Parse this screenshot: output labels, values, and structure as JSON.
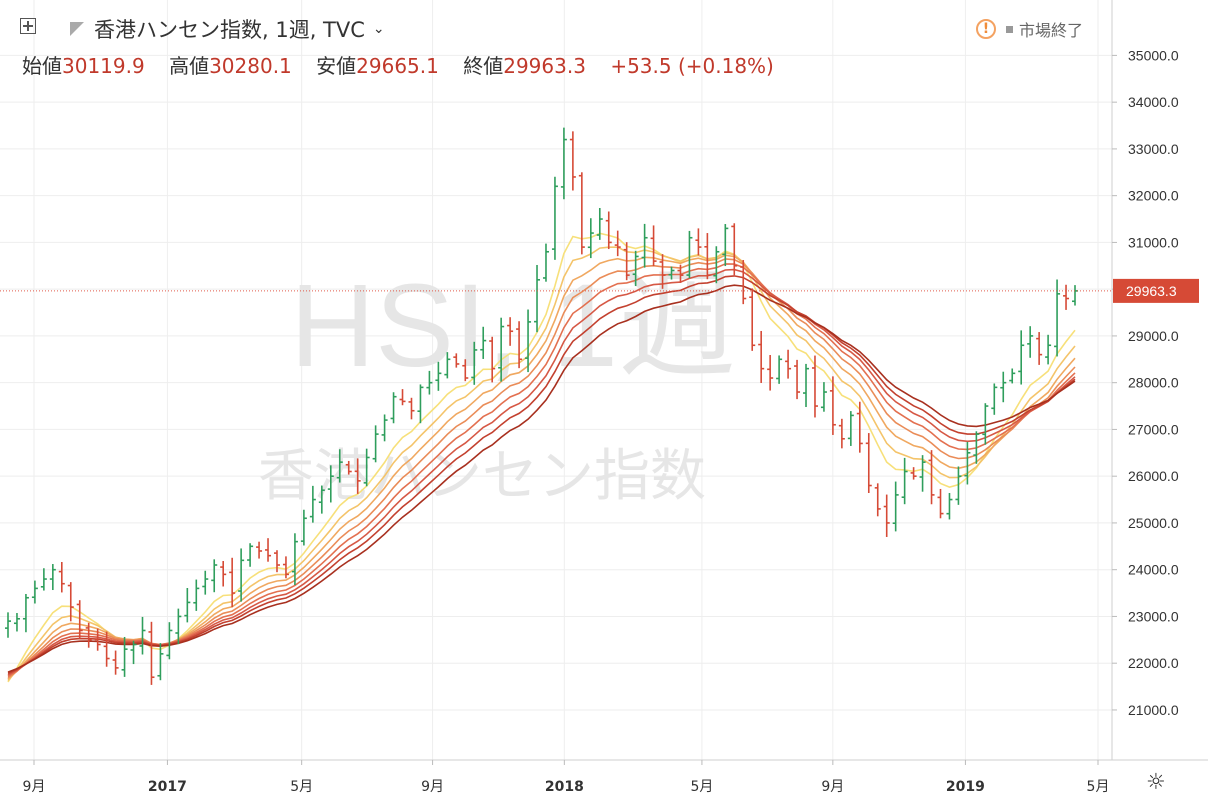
{
  "header": {
    "symbol_title": "香港ハンセン指数, 1週, TVC",
    "ohlc": [
      {
        "label": "始値",
        "value": "30119.9"
      },
      {
        "label": "高値",
        "value": "30280.1"
      },
      {
        "label": "安値",
        "value": "29665.1"
      },
      {
        "label": "終値",
        "value": "29963.3"
      },
      {
        "label": "",
        "value": "+53.5 (+0.18%)"
      }
    ],
    "market_status": "市場終了"
  },
  "watermark": {
    "line1": "HSI, 1週",
    "line2": "香港ハンセン指数"
  },
  "chart_data": {
    "type": "ohlc",
    "price_axis_ticks": [
      "35000.0",
      "34000.0",
      "33000.0",
      "32000.0",
      "31000.0",
      "30000.0",
      "29000.0",
      "28000.0",
      "27000.0",
      "26000.0",
      "25000.0",
      "24000.0",
      "23000.0",
      "22000.0",
      "21000.0"
    ],
    "ylim": [
      20400,
      35800
    ],
    "last_price_label": "29963.3",
    "last_price": 29963.3,
    "time_axis_labels": [
      "9月",
      "2017",
      "5月",
      "9月",
      "2018",
      "5月",
      "9月",
      "2019",
      "5月"
    ],
    "time_axis_fractions": [
      0.0,
      0.16,
      0.321,
      0.478,
      0.636,
      0.801,
      0.958,
      1.117,
      1.276
    ],
    "colors": {
      "up": "#2f9e5c",
      "down": "#d64a36",
      "last_line": "#e05a4a"
    },
    "closes": [
      22900,
      22950,
      23400,
      23600,
      23800,
      24000,
      23700,
      23200,
      22700,
      22500,
      22400,
      22100,
      21900,
      22300,
      22400,
      22700,
      21700,
      22200,
      22700,
      23000,
      23300,
      23600,
      23800,
      24100,
      23900,
      23500,
      24200,
      24500,
      24400,
      24300,
      24100,
      23900,
      24600,
      25100,
      25500,
      25700,
      26000,
      26300,
      26100,
      25900,
      26400,
      26900,
      27200,
      27700,
      27600,
      27400,
      27900,
      28000,
      28200,
      28500,
      28400,
      28100,
      28700,
      28900,
      28300,
      29200,
      29100,
      28500,
      29300,
      30200,
      30800,
      32200,
      33200,
      32400,
      30900,
      31200,
      31500,
      31000,
      30900,
      30300,
      30700,
      31100,
      30600,
      30300,
      30400,
      30300,
      31100,
      30900,
      30300,
      30800,
      31300,
      30500,
      29800,
      28800,
      28300,
      28100,
      28500,
      28300,
      27800,
      28300,
      27500,
      27800,
      27100,
      26800,
      27300,
      26700,
      25800,
      25300,
      25000,
      25600,
      26100,
      26000,
      26300,
      25600,
      25200,
      25500,
      26000,
      26500,
      26900,
      27500,
      27900,
      28000,
      28200,
      28800,
      29000,
      28600,
      28800,
      29900,
      29800,
      29963
    ]
  }
}
